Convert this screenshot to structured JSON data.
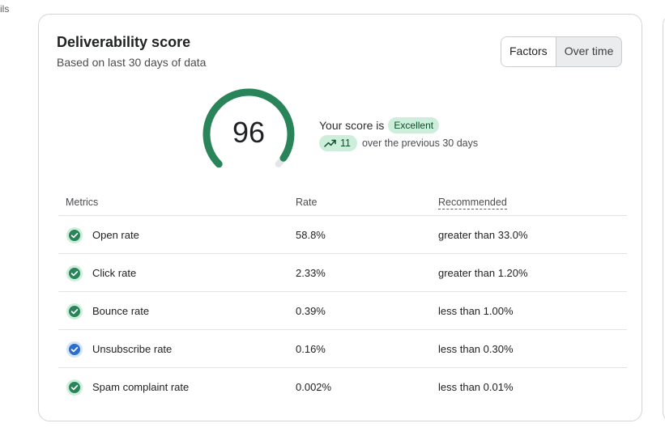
{
  "breadcrumb_fragment": "ils",
  "card": {
    "title": "Deliverability score",
    "subtitle": "Based on last 30 days of data",
    "toggle": {
      "options": [
        "Factors",
        "Over time"
      ],
      "selected": "Factors"
    }
  },
  "score": {
    "value": "96",
    "gauge_fraction": 0.96,
    "prefix": "Your score is",
    "rating": "Excellent",
    "trend_value": "11",
    "trend_text": "over the previous 30 days"
  },
  "table": {
    "headers": {
      "metric": "Metrics",
      "rate": "Rate",
      "recommended": "Recommended"
    },
    "rows": [
      {
        "metric": "Open rate",
        "rate": "58.8%",
        "recommended": "greater than 33.0%",
        "status": "good"
      },
      {
        "metric": "Click rate",
        "rate": "2.33%",
        "recommended": "greater than 1.20%",
        "status": "good"
      },
      {
        "metric": "Bounce rate",
        "rate": "0.39%",
        "recommended": "less than 1.00%",
        "status": "good"
      },
      {
        "metric": "Unsubscribe rate",
        "rate": "0.16%",
        "recommended": "less than 0.30%",
        "status": "info"
      },
      {
        "metric": "Spam complaint rate",
        "rate": "0.002%",
        "recommended": "less than 0.01%",
        "status": "good"
      }
    ]
  },
  "colors": {
    "good": "#29845a",
    "good_bg": "#cdeedb",
    "info": "#2c6ecb",
    "info_bg": "#d5e4fb",
    "gauge_track": "#e3e5e8"
  },
  "icons": {
    "trend": "trend-up-icon",
    "check": "check-circle-icon"
  }
}
